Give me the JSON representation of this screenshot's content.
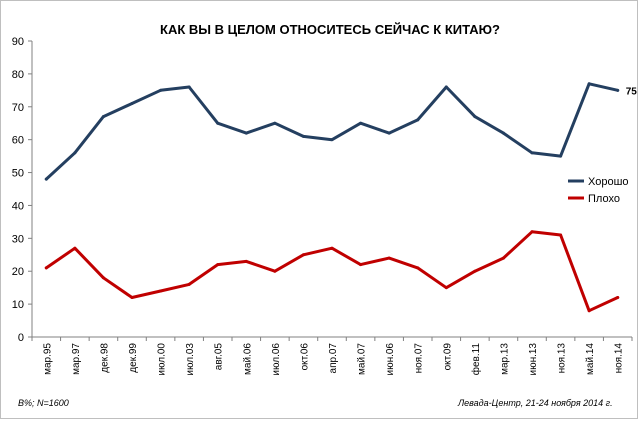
{
  "chart_data": {
    "type": "line",
    "title": "КАК ВЫ В ЦЕЛОМ ОТНОСИТЕСЬ СЕЙЧАС К КИТАЮ?",
    "xlabel": "",
    "ylabel": "",
    "ylim": [
      0,
      90
    ],
    "yticks": [
      "0",
      "10",
      "20",
      "30",
      "40",
      "50",
      "60",
      "70",
      "80",
      "90"
    ],
    "grid": false,
    "legend_position": "right",
    "categories": [
      "мар.95",
      "мар.97",
      "дек.98",
      "дек.99",
      "июл.00",
      "июл.03",
      "авг.05",
      "май.06",
      "июл.06",
      "окт.06",
      "апр.07",
      "май.07",
      "июн.06",
      "ноя.07",
      "окт.09",
      "фев.11",
      "мар.13",
      "июн.13",
      "ноя.13",
      "май.14",
      "ноя.14"
    ],
    "series": [
      {
        "name": "Хорошо",
        "color": "#243f60",
        "values": [
          48,
          56,
          67,
          71,
          75,
          76,
          65,
          62,
          65,
          61,
          60,
          65,
          62,
          66,
          76,
          67,
          62,
          56,
          55,
          77,
          75
        ]
      },
      {
        "name": "Плохо",
        "color": "#c00000",
        "values": [
          21,
          27,
          18,
          12,
          14,
          16,
          22,
          23,
          20,
          25,
          27,
          22,
          24,
          21,
          15,
          20,
          24,
          32,
          31,
          8,
          12
        ]
      }
    ],
    "annotations": [
      {
        "series": 0,
        "index": 20,
        "text": "75"
      }
    ]
  },
  "footnotes": {
    "left": "В%; N=1600",
    "right": "Левада-Центр, 21-24 ноября 2014 г."
  }
}
